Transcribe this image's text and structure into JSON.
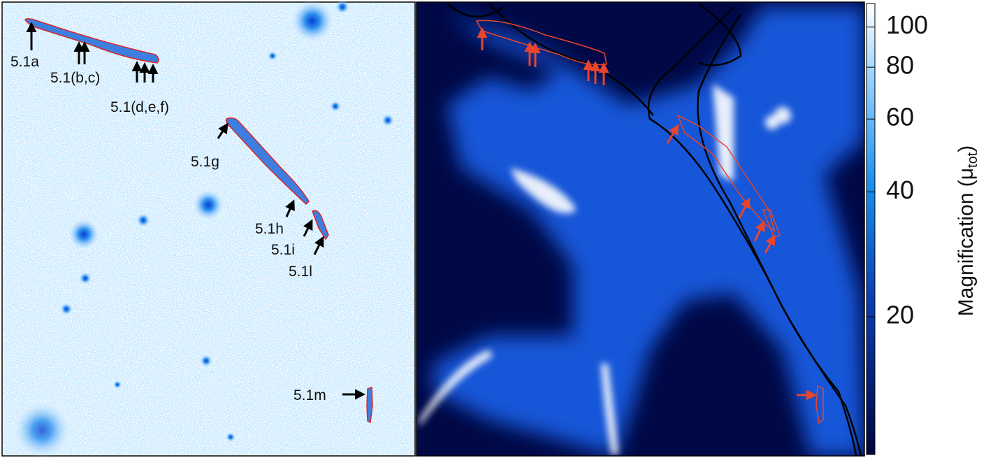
{
  "left_panel": {
    "labels": [
      "5.1a",
      "5.1(b,c)",
      "5.1(d,e,f)",
      "5.1g",
      "5.1h",
      "5.1i",
      "5.1l",
      "5.1m"
    ]
  },
  "colorbar": {
    "label_prefix": "Magnification (μ",
    "label_subscript": "tot",
    "label_suffix": ")",
    "scale": "log",
    "lim": [
      9.3,
      114
    ],
    "ticks": [
      20,
      40,
      60,
      80,
      100
    ]
  }
}
